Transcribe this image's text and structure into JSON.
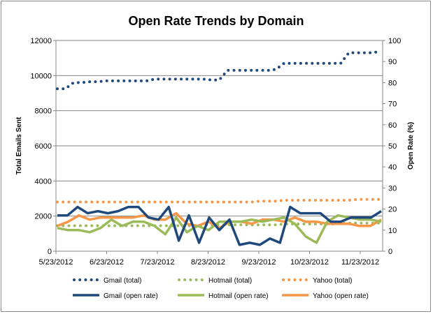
{
  "chart_data": {
    "type": "line",
    "title": "Open Rate Trends by Domain",
    "ylabel": "Total Emails Sent",
    "y2label": "Open Rate (%)",
    "ylim": [
      0,
      12000
    ],
    "y2lim": [
      0,
      100
    ],
    "yticks": [
      "0",
      "2000",
      "4000",
      "6000",
      "8000",
      "10000",
      "12000"
    ],
    "y2ticks": [
      "0",
      "10",
      "20",
      "30",
      "40",
      "50",
      "60",
      "70",
      "80",
      "90",
      "100"
    ],
    "x_start": "5/23/2012",
    "x_ticks": [
      "5/23/2012",
      "6/23/2012",
      "7/23/2012",
      "8/23/2012",
      "9/23/2012",
      "10/23/2012",
      "11/23/2012"
    ],
    "grid": true,
    "legend_position": "bottom",
    "series": [
      {
        "name": "Gmail (total)",
        "axis": "left",
        "style": "dotted",
        "color": "#1f497d",
        "values": [
          9250,
          9250,
          9600,
          9600,
          9650,
          9650,
          9700,
          9700,
          9700,
          9700,
          9700,
          9700,
          9800,
          9800,
          9800,
          9800,
          9800,
          9800,
          9800,
          9750,
          9750,
          10300,
          10300,
          10300,
          10300,
          10300,
          10300,
          10350,
          10700,
          10700,
          10700,
          10700,
          10700,
          10700,
          10700,
          10700,
          11300,
          11300,
          11300,
          11300,
          11400
        ]
      },
      {
        "name": "Hotmail (total)",
        "axis": "left",
        "style": "dotted",
        "color": "#9bbb59",
        "values": [
          1450,
          1450,
          1450,
          1450,
          1450,
          1450,
          1450,
          1450,
          1450,
          1450,
          1450,
          1450,
          1450,
          1450,
          1450,
          1450,
          1450,
          1450,
          1500,
          1500,
          1500,
          1500,
          1500,
          1500,
          1500,
          1500,
          1500,
          1500,
          1550,
          1550,
          1550,
          1550,
          1550,
          1550,
          1550,
          1600,
          1600,
          1600,
          1600,
          1600,
          1600
        ]
      },
      {
        "name": "Yahoo (total)",
        "axis": "left",
        "style": "dotted",
        "color": "#f79646",
        "values": [
          2800,
          2800,
          2800,
          2800,
          2800,
          2800,
          2800,
          2800,
          2800,
          2800,
          2800,
          2800,
          2800,
          2800,
          2800,
          2800,
          2800,
          2800,
          2800,
          2800,
          2800,
          2800,
          2800,
          2800,
          2800,
          2850,
          2850,
          2850,
          2900,
          2900,
          2900,
          2900,
          2900,
          2900,
          2900,
          2900,
          2900,
          2950,
          2950,
          2950,
          2950
        ]
      },
      {
        "name": "Gmail (open rate)",
        "axis": "right",
        "style": "solid",
        "color": "#1f497d",
        "values": [
          17,
          17,
          21,
          18,
          19,
          18,
          19,
          21,
          21,
          16,
          15,
          21,
          5,
          17,
          4,
          16,
          10,
          15,
          3,
          4,
          3,
          6,
          4,
          21,
          18,
          18,
          18,
          14,
          14,
          16,
          16,
          16,
          19
        ]
      },
      {
        "name": "Hotmail (open rate)",
        "axis": "right",
        "style": "solid",
        "color": "#9bbb59",
        "values": [
          11,
          10,
          10,
          9,
          11,
          15,
          12,
          14,
          14,
          12,
          8,
          16,
          9,
          12,
          10,
          14,
          14,
          14,
          15,
          14,
          15,
          16,
          13,
          7,
          4,
          14,
          17,
          16,
          15,
          15,
          14
        ]
      },
      {
        "name": "Yahoo (open rate)",
        "axis": "right",
        "style": "solid",
        "color": "#f79646",
        "values": [
          12,
          14,
          17,
          15,
          16,
          16,
          16,
          16,
          17,
          15,
          15,
          18,
          13,
          12,
          14,
          11,
          14,
          14,
          13,
          15,
          15,
          14,
          16,
          14,
          14,
          13,
          13,
          13,
          12,
          12,
          15
        ]
      }
    ]
  }
}
